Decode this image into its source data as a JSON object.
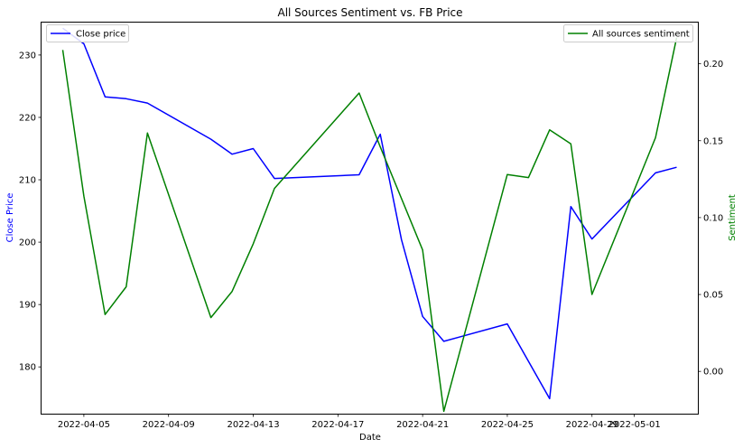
{
  "chart_data": {
    "type": "line",
    "title": "All Sources Sentiment vs. FB Price",
    "xlabel": "Date",
    "ylabel_left": "Close Price",
    "ylabel_right": "Sentiment",
    "x_ticks": [
      "2022-04-05",
      "2022-04-09",
      "2022-04-13",
      "2022-04-17",
      "2022-04-21",
      "2022-04-25",
      "2022-04-29",
      "2022-05-01"
    ],
    "left_ticks": [
      "180",
      "190",
      "200",
      "210",
      "220",
      "230"
    ],
    "right_ticks": [
      "0.00",
      "0.05",
      "0.10",
      "0.15",
      "0.20"
    ],
    "left_ylim": [
      172.5,
      235.2
    ],
    "right_ylim": [
      -0.0275,
      0.2268
    ],
    "xlim": [
      "2022-04-03",
      "2022-05-04"
    ],
    "grid": false,
    "series": [
      {
        "name": "Close price",
        "axis": "left",
        "color": "#0000ff",
        "legend_position": "upper-left",
        "points": [
          {
            "x": "2022-04-04",
            "y": 234.3
          },
          {
            "x": "2022-04-05",
            "y": 231.8
          },
          {
            "x": "2022-04-06",
            "y": 223.3
          },
          {
            "x": "2022-04-07",
            "y": 223.0
          },
          {
            "x": "2022-04-08",
            "y": 222.3
          },
          {
            "x": "2022-04-11",
            "y": 216.5
          },
          {
            "x": "2022-04-12",
            "y": 214.1
          },
          {
            "x": "2022-04-13",
            "y": 215.0
          },
          {
            "x": "2022-04-14",
            "y": 210.2
          },
          {
            "x": "2022-04-18",
            "y": 210.8
          },
          {
            "x": "2022-04-19",
            "y": 217.3
          },
          {
            "x": "2022-04-20",
            "y": 200.4
          },
          {
            "x": "2022-04-21",
            "y": 188.1
          },
          {
            "x": "2022-04-22",
            "y": 184.1
          },
          {
            "x": "2022-04-25",
            "y": 186.9
          },
          {
            "x": "2022-04-27",
            "y": 174.9
          },
          {
            "x": "2022-04-28",
            "y": 205.7
          },
          {
            "x": "2022-04-29",
            "y": 200.5
          },
          {
            "x": "2022-05-02",
            "y": 211.1
          },
          {
            "x": "2022-05-03",
            "y": 212.0
          }
        ]
      },
      {
        "name": "All sources sentiment",
        "axis": "right",
        "color": "#008000",
        "legend_position": "upper-right",
        "points": [
          {
            "x": "2022-04-04",
            "y": 0.209
          },
          {
            "x": "2022-04-05",
            "y": 0.114
          },
          {
            "x": "2022-04-06",
            "y": 0.037
          },
          {
            "x": "2022-04-07",
            "y": 0.055
          },
          {
            "x": "2022-04-08",
            "y": 0.155
          },
          {
            "x": "2022-04-11",
            "y": 0.035
          },
          {
            "x": "2022-04-12",
            "y": 0.052
          },
          {
            "x": "2022-04-13",
            "y": 0.083
          },
          {
            "x": "2022-04-14",
            "y": 0.119
          },
          {
            "x": "2022-04-18",
            "y": 0.181
          },
          {
            "x": "2022-04-19",
            "y": 0.146
          },
          {
            "x": "2022-04-21",
            "y": 0.079
          },
          {
            "x": "2022-04-22",
            "y": -0.026
          },
          {
            "x": "2022-04-25",
            "y": 0.128
          },
          {
            "x": "2022-04-26",
            "y": 0.126
          },
          {
            "x": "2022-04-27",
            "y": 0.157
          },
          {
            "x": "2022-04-28",
            "y": 0.148
          },
          {
            "x": "2022-04-29",
            "y": 0.05
          },
          {
            "x": "2022-05-02",
            "y": 0.152
          },
          {
            "x": "2022-05-03",
            "y": 0.217
          }
        ]
      }
    ]
  }
}
